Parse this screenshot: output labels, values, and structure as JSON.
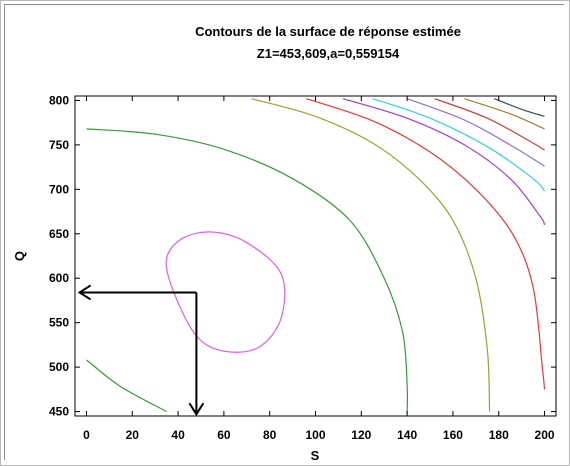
{
  "chart_data": {
    "type": "contour",
    "title": "Contours de la surface de réponse estimée",
    "subtitle": "Z1=453,609,a=0,559154",
    "xlabel": "S",
    "ylabel": "Q",
    "xlim": [
      -5,
      205
    ],
    "ylim": [
      445,
      805
    ],
    "grid": false,
    "xticks": [
      "0",
      "20",
      "40",
      "60",
      "80",
      "100",
      "120",
      "140",
      "160",
      "180",
      "200"
    ],
    "yticks": [
      "450",
      "500",
      "550",
      "600",
      "650",
      "700",
      "750",
      "800"
    ],
    "contours": [
      {
        "color": "#e060e0",
        "closed": true,
        "points": [
          [
            35,
            622
          ],
          [
            42,
            645
          ],
          [
            55,
            652
          ],
          [
            70,
            640
          ],
          [
            85,
            605
          ],
          [
            85,
            555
          ],
          [
            75,
            522
          ],
          [
            60,
            518
          ],
          [
            48,
            535
          ],
          [
            38,
            585
          ]
        ]
      },
      {
        "color": "#3a9a3a",
        "closed": false,
        "points": [
          [
            0,
            508
          ],
          [
            15,
            478
          ],
          [
            35,
            450
          ]
        ]
      },
      {
        "color": "#3a9a3a",
        "closed": false,
        "points": [
          [
            0,
            768
          ],
          [
            30,
            762
          ],
          [
            60,
            745
          ],
          [
            90,
            712
          ],
          [
            115,
            665
          ],
          [
            130,
            600
          ],
          [
            138,
            540
          ],
          [
            140,
            480
          ],
          [
            140,
            448
          ]
        ]
      },
      {
        "color": "#a0a030",
        "closed": false,
        "points": [
          [
            72,
            802
          ],
          [
            100,
            782
          ],
          [
            125,
            752
          ],
          [
            145,
            712
          ],
          [
            160,
            665
          ],
          [
            170,
            600
          ],
          [
            175,
            520
          ],
          [
            176,
            450
          ]
        ]
      },
      {
        "color": "#e03a3a",
        "closed": false,
        "points": [
          [
            96,
            802
          ],
          [
            125,
            777
          ],
          [
            150,
            742
          ],
          [
            170,
            700
          ],
          [
            186,
            650
          ],
          [
            195,
            590
          ],
          [
            199,
            500
          ],
          [
            200,
            475
          ]
        ]
      },
      {
        "color": "#a040c8",
        "closed": false,
        "points": [
          [
            112,
            802
          ],
          [
            140,
            780
          ],
          [
            165,
            750
          ],
          [
            185,
            712
          ],
          [
            198,
            670
          ],
          [
            200,
            660
          ]
        ]
      },
      {
        "color": "#30d0e0",
        "closed": false,
        "points": [
          [
            125,
            802
          ],
          [
            150,
            780
          ],
          [
            175,
            748
          ],
          [
            195,
            712
          ],
          [
            200,
            698
          ]
        ]
      },
      {
        "color": "#9070d0",
        "closed": false,
        "points": [
          [
            140,
            802
          ],
          [
            165,
            778
          ],
          [
            185,
            750
          ],
          [
            200,
            726
          ]
        ]
      },
      {
        "color": "#c84040",
        "closed": false,
        "points": [
          [
            152,
            802
          ],
          [
            175,
            780
          ],
          [
            195,
            752
          ],
          [
            200,
            744
          ]
        ]
      },
      {
        "color": "#a08030",
        "closed": false,
        "points": [
          [
            165,
            802
          ],
          [
            185,
            785
          ],
          [
            200,
            768
          ]
        ]
      },
      {
        "color": "#305050",
        "closed": false,
        "points": [
          [
            178,
            802
          ],
          [
            190,
            790
          ],
          [
            200,
            782
          ]
        ]
      }
    ],
    "annotation_arrows": [
      {
        "from": [
          48,
          584
        ],
        "to": [
          -3,
          584
        ]
      },
      {
        "from": [
          48,
          584
        ],
        "to": [
          48,
          447
        ]
      }
    ]
  }
}
